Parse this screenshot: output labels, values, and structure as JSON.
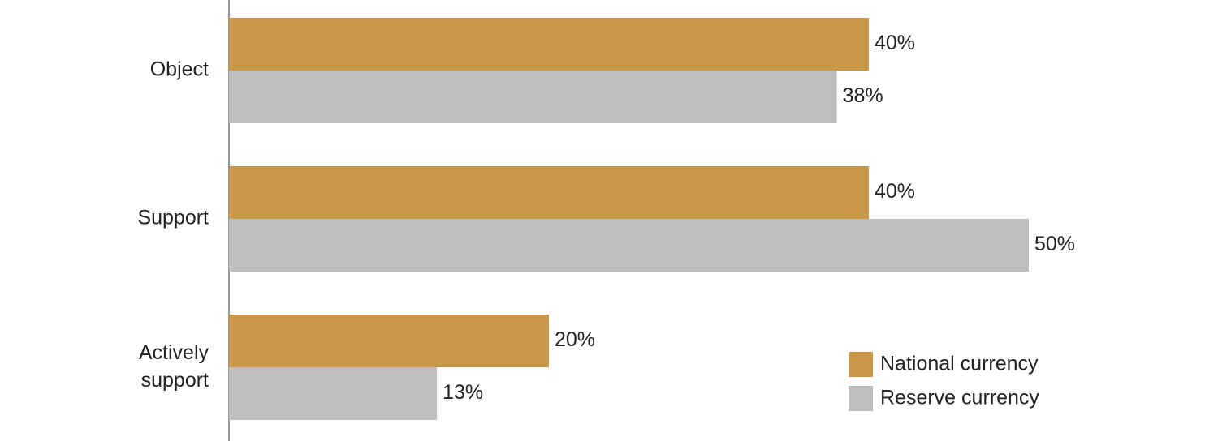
{
  "chart_data": {
    "type": "barh",
    "categories": [
      "Object",
      "Support",
      "Actively support"
    ],
    "series": [
      {
        "name": "National currency",
        "color": "#c9974a",
        "values": [
          40,
          40,
          20
        ],
        "value_labels": [
          "40%",
          "40%",
          "20%"
        ]
      },
      {
        "name": "Reserve currency",
        "color": "#bfbebc",
        "values": [
          38,
          50,
          13
        ],
        "value_labels": [
          "38%",
          "50%",
          "13%"
        ]
      }
    ],
    "legend": "lower right"
  }
}
